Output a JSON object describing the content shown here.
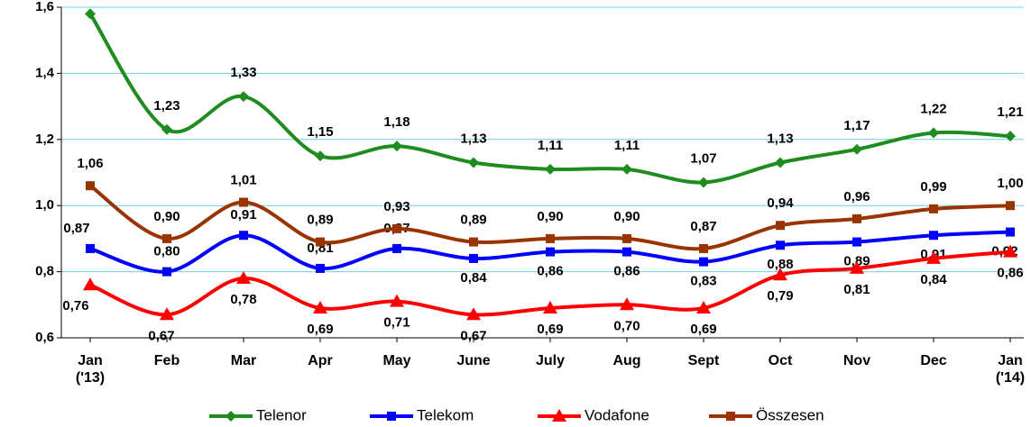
{
  "chart_data": {
    "type": "line",
    "categories": [
      "Jan ('13)",
      "Feb",
      "Mar",
      "Apr",
      "May",
      "June",
      "July",
      "Aug",
      "Sept",
      "Oct",
      "Nov",
      "Dec",
      "Jan ('14)"
    ],
    "series": [
      {
        "name": "Telenor",
        "color": "#1e8c1e",
        "marker": "diamond",
        "values": [
          1.58,
          1.23,
          1.33,
          1.15,
          1.18,
          1.13,
          1.11,
          1.11,
          1.07,
          1.13,
          1.17,
          1.22,
          1.21
        ],
        "value_labels": [
          null,
          "1,23",
          "1,33",
          "1,15",
          "1,18",
          "1,13",
          "1,11",
          "1,11",
          "1,07",
          "1,13",
          "1,17",
          "1,22",
          "1,21"
        ]
      },
      {
        "name": "Telekom",
        "color": "#0000ff",
        "marker": "square",
        "values": [
          0.87,
          0.8,
          0.91,
          0.81,
          0.87,
          0.84,
          0.86,
          0.86,
          0.83,
          0.88,
          0.89,
          0.91,
          0.92
        ],
        "value_labels": [
          "0,87",
          "0,80",
          "0,91",
          "0,81",
          "0,87",
          "0,84",
          "0,86",
          "0,86",
          "0,83",
          "0,88",
          "0,89",
          "0,91",
          "0,92"
        ]
      },
      {
        "name": "Vodafone",
        "color": "#ff0000",
        "marker": "triangle",
        "values": [
          0.76,
          0.67,
          0.78,
          0.69,
          0.71,
          0.67,
          0.69,
          0.7,
          0.69,
          0.79,
          0.81,
          0.84,
          0.86
        ],
        "value_labels": [
          "0,76",
          "0,67",
          "0,78",
          "0,69",
          "0,71",
          "0,67",
          "0,69",
          "0,70",
          "0,69",
          "0,79",
          "0,81",
          "0,84",
          "0,86"
        ]
      },
      {
        "name": "Összesen",
        "color": "#993300",
        "marker": "square",
        "values": [
          1.06,
          0.9,
          1.01,
          0.89,
          0.93,
          0.89,
          0.9,
          0.9,
          0.87,
          0.94,
          0.96,
          0.99,
          1.0
        ],
        "value_labels": [
          "1,06",
          "0,90",
          "1,01",
          "0,89",
          "0,93",
          "0,89",
          "0,90",
          "0,90",
          "0,87",
          "0,94",
          "0,96",
          "0,99",
          "1,00"
        ]
      }
    ],
    "ylim": [
      0.6,
      1.6
    ],
    "yticks": [
      {
        "value": 0.6,
        "label": "0,6"
      },
      {
        "value": 0.8,
        "label": "0,8"
      },
      {
        "value": 1.0,
        "label": "1,0"
      },
      {
        "value": 1.2,
        "label": "1,2"
      },
      {
        "value": 1.4,
        "label": "1,4"
      },
      {
        "value": 1.6,
        "label": "1,6"
      }
    ],
    "grid": true,
    "legend": "bottom"
  }
}
